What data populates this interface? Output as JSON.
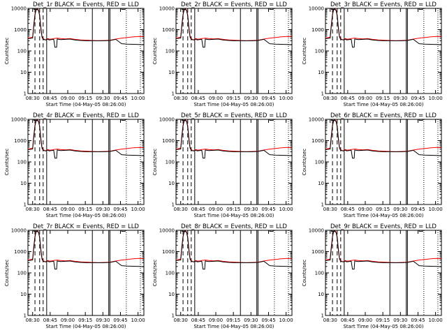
{
  "figure": {
    "xlabel": "Start Time (04-May-05 08:26:00)",
    "ylabel": "Counts/sec",
    "series_colors": {
      "events": "#000000",
      "lld": "#ff0000"
    }
  },
  "chart_data": [
    {
      "type": "line",
      "title": "Det_1r BLACK = Events, RED = LLD"
    },
    {
      "type": "line",
      "title": "Det_2r BLACK = Events, RED = LLD"
    },
    {
      "type": "line",
      "title": "Det_3r BLACK = Events, RED = LLD"
    },
    {
      "type": "line",
      "title": "Det_4r BLACK = Events, RED = LLD"
    },
    {
      "type": "line",
      "title": "Det_5r BLACK = Events, RED = LLD"
    },
    {
      "type": "line",
      "title": "Det_6r BLACK = Events, RED = LLD"
    },
    {
      "type": "line",
      "title": "Det_7r BLACK = Events, RED = LLD"
    },
    {
      "type": "line",
      "title": "Det_8r BLACK = Events, RED = LLD"
    },
    {
      "type": "line",
      "title": "Det_9r BLACK = Events, RED = LLD"
    }
  ],
  "shared": {
    "x_minutes": [
      0,
      2,
      4,
      5,
      6,
      7,
      8,
      9,
      10,
      11,
      12,
      13,
      14,
      15,
      16,
      17,
      18,
      20,
      22,
      25,
      28,
      32,
      36,
      40,
      45,
      50,
      55,
      60,
      65,
      70,
      75,
      80,
      85,
      90,
      95,
      99
    ],
    "events": [
      380,
      390,
      400,
      1500,
      5000,
      8500,
      9000,
      8000,
      4500,
      1200,
      450,
      350,
      340,
      330,
      340,
      360,
      330,
      340,
      350,
      360,
      340,
      350,
      360,
      330,
      310,
      300,
      300,
      300,
      300,
      310,
      350,
      220,
      210,
      205,
      200,
      195
    ],
    "lld": [
      400,
      420,
      450,
      1800,
      5500,
      9000,
      9500,
      8500,
      5000,
      1400,
      500,
      380,
      350,
      330,
      360,
      380,
      360,
      360,
      380,
      400,
      380,
      370,
      380,
      350,
      330,
      320,
      310,
      300,
      310,
      320,
      360,
      400,
      430,
      460,
      480,
      470
    ],
    "xlim": [
      0,
      99
    ],
    "ylim": [
      1,
      10000
    ],
    "yscale": "log",
    "xticks": [
      "08:30",
      "08:45",
      "09:00",
      "09:15",
      "09:30",
      "09:45",
      "10:00"
    ],
    "xtick_minutes": [
      4,
      19,
      34,
      49,
      64,
      79,
      94
    ],
    "yticks": [
      "1",
      "10",
      "100",
      "1000",
      "10000"
    ],
    "ytick_values": [
      1,
      10,
      100,
      1000,
      10000
    ],
    "dip_minutes": [
      22,
      25
    ],
    "dashed_lines_minutes": [
      6,
      10,
      13
    ],
    "solid_lines_minutes": [
      16,
      55,
      69,
      70
    ],
    "dotted_lines_minutes": [
      84,
      96
    ]
  }
}
